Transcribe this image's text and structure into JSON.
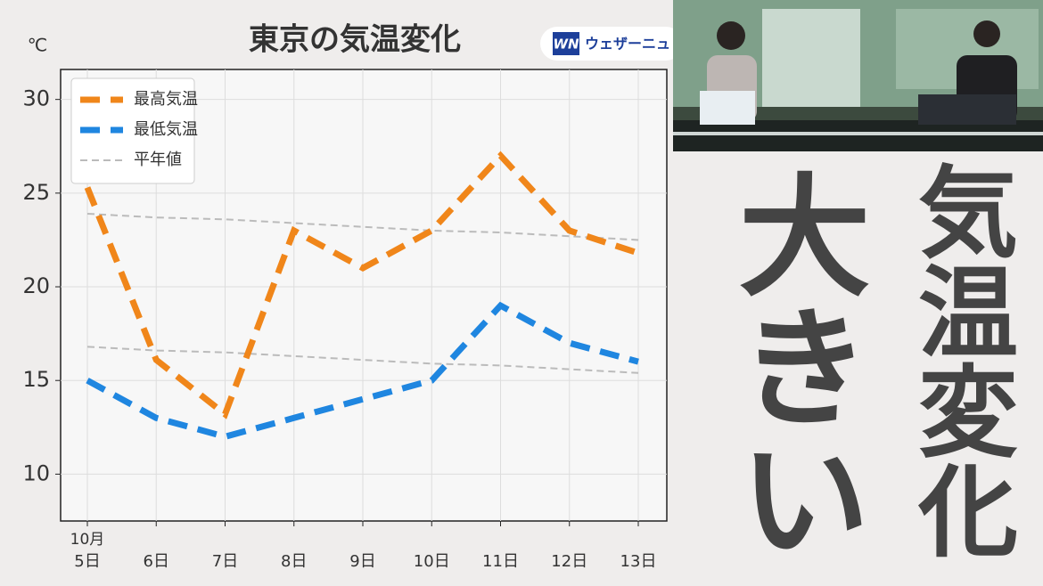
{
  "chart_data": {
    "type": "line",
    "title": "東京の気温変化",
    "y_unit": "℃",
    "x_annotation": "10月",
    "categories": [
      "5日",
      "6日",
      "7日",
      "8日",
      "9日",
      "10日",
      "11日",
      "12日",
      "13日"
    ],
    "series": [
      {
        "name": "最高気温",
        "color": "#f0861a",
        "style": "dashed-thick",
        "values": [
          25.3,
          16.1,
          13.2,
          23.0,
          21.0,
          23.0,
          27.0,
          23.0,
          21.8
        ]
      },
      {
        "name": "最低気温",
        "color": "#1f86e0",
        "style": "dashed-thick",
        "values": [
          15.0,
          13.0,
          12.0,
          13.0,
          14.0,
          15.0,
          19.0,
          17.0,
          16.0
        ]
      },
      {
        "name": "平年値",
        "color": "#bbbbbb",
        "style": "dashed-thin",
        "values": [
          23.9,
          23.7,
          23.6,
          23.4,
          23.2,
          23.0,
          22.9,
          22.7,
          22.5
        ]
      },
      {
        "color": "#bbbbbb",
        "style": "dashed-thin",
        "values": [
          16.8,
          16.6,
          16.5,
          16.3,
          16.1,
          15.9,
          15.8,
          15.6,
          15.4
        ]
      }
    ],
    "ylim": [
      7.5,
      31.6
    ],
    "yticks": [
      10,
      15,
      20,
      25,
      30
    ],
    "grid": true,
    "legend": "upper-left"
  },
  "logo": {
    "mark": "WN",
    "text": "ウェザーニュ"
  },
  "caption": {
    "line1": "気温変化",
    "line2": "大きい"
  }
}
